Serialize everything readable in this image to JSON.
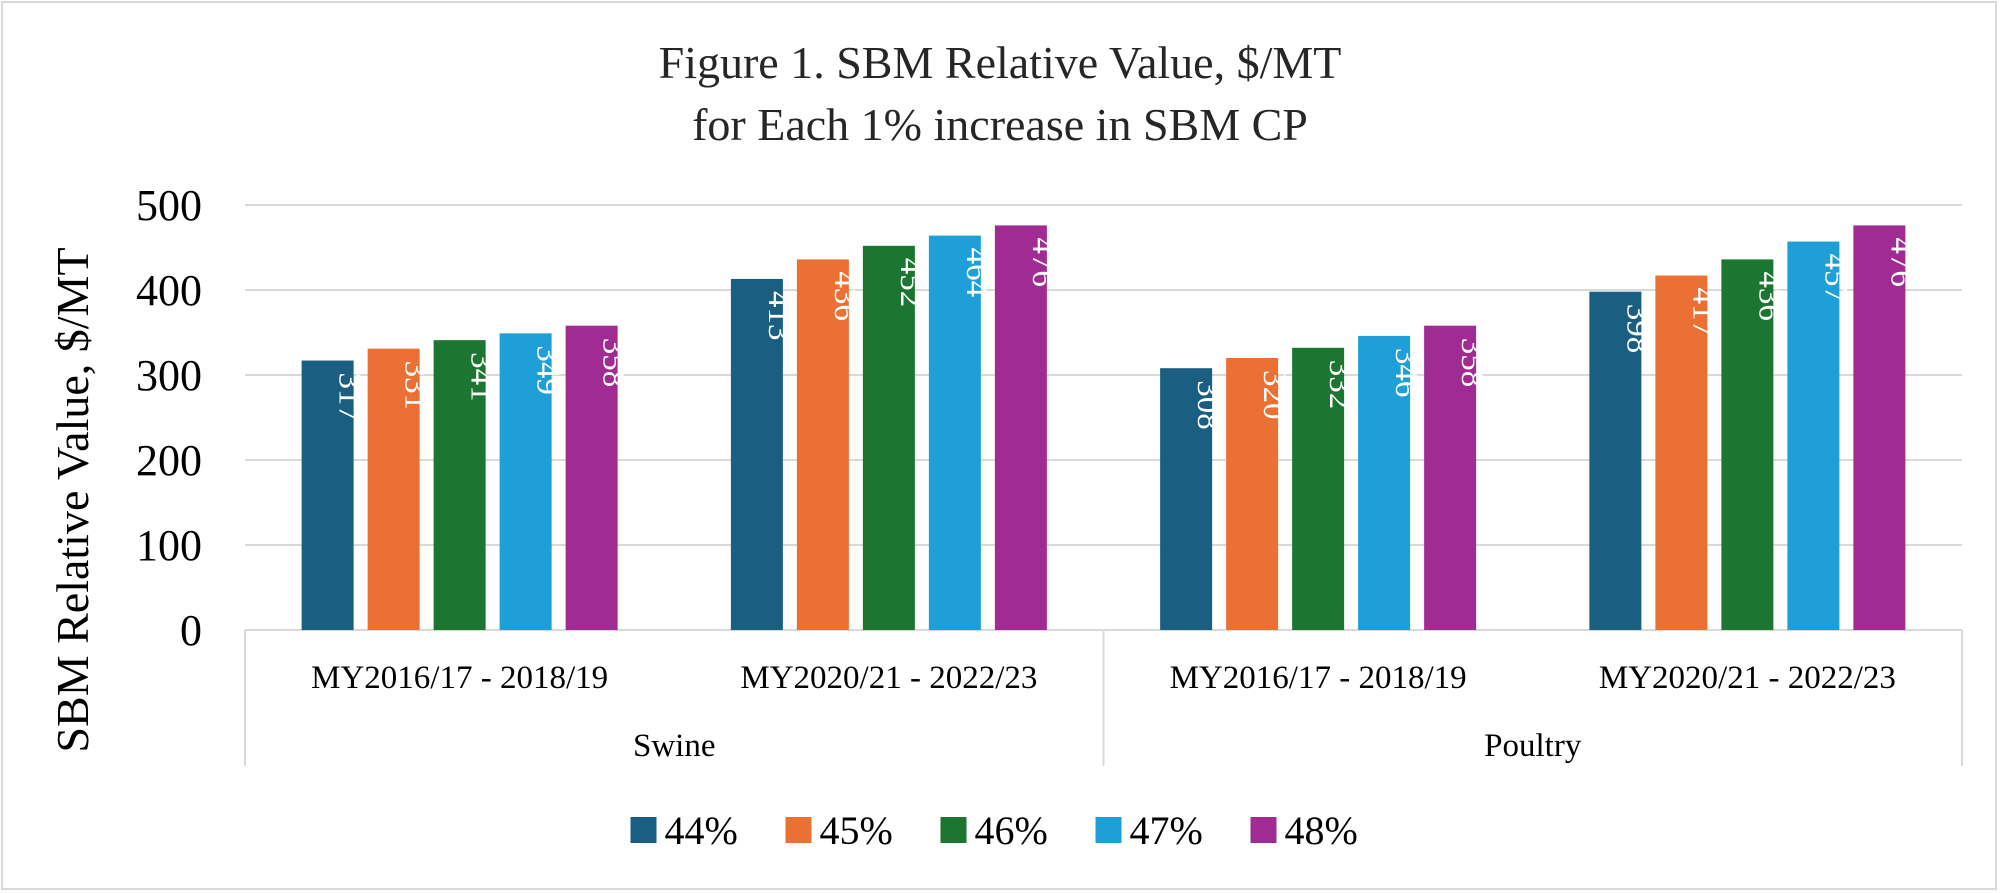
{
  "chart_data": {
    "type": "bar",
    "title_lines": [
      "Figure 1. SBM Relative Value, $/MT",
      "for Each 1% increase in SBM CP"
    ],
    "ylabel": "SBM Relative Value, $/MT",
    "xlabel": "",
    "ylim": [
      0,
      500
    ],
    "yticks": [
      0,
      100,
      200,
      300,
      400,
      500
    ],
    "grid": true,
    "legend_position": "bottom",
    "groups": [
      {
        "label": "Swine",
        "categories": [
          "MY2016/17 - 2018/19",
          "MY2020/21 - 2022/23"
        ]
      },
      {
        "label": "Poultry",
        "categories": [
          "MY2016/17 - 2018/19",
          "MY2020/21 - 2022/23"
        ]
      }
    ],
    "categories": [
      "Swine | MY2016/17 - 2018/19",
      "Swine | MY2020/21 - 2022/23",
      "Poultry | MY2016/17 - 2018/19",
      "Poultry | MY2020/21 - 2022/23"
    ],
    "series": [
      {
        "name": "44%",
        "color": "#1a5e82",
        "values": [
          317,
          413,
          308,
          398
        ]
      },
      {
        "name": "45%",
        "color": "#ea7133",
        "values": [
          331,
          436,
          320,
          417
        ]
      },
      {
        "name": "46%",
        "color": "#1c7530",
        "values": [
          341,
          452,
          332,
          436
        ]
      },
      {
        "name": "47%",
        "color": "#1e9fd8",
        "values": [
          349,
          464,
          346,
          457
        ]
      },
      {
        "name": "48%",
        "color": "#a02b93",
        "values": [
          358,
          476,
          358,
          476
        ]
      }
    ]
  }
}
